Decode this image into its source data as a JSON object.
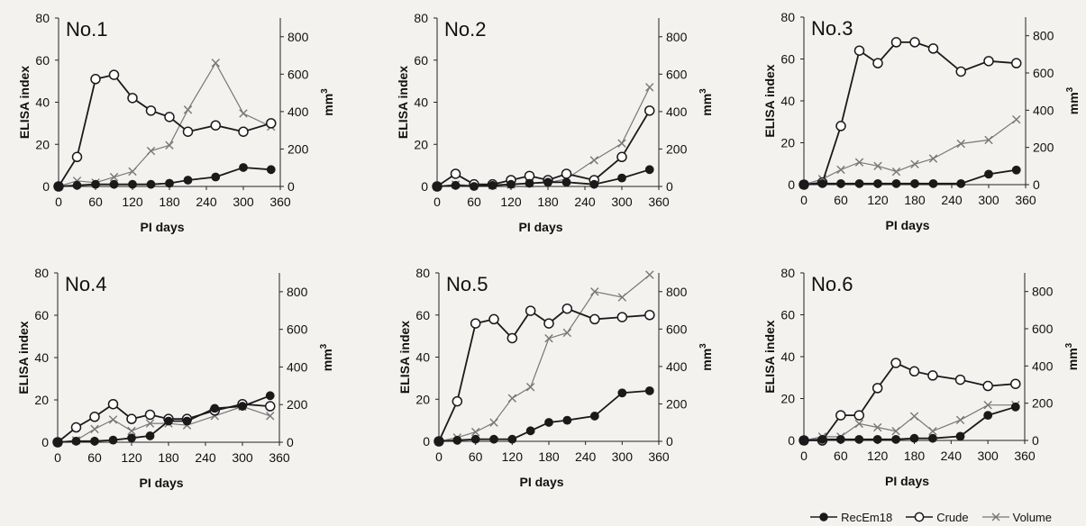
{
  "legend": {
    "recem18": "RecEm18",
    "crude": "Crude",
    "volume": "Volume"
  },
  "colors": {
    "recem18": "#1a1a1a",
    "crude": "#1a1a1a",
    "volume": "#777777",
    "axis": "#222222"
  },
  "chart_data": [
    {
      "type": "line",
      "title": "No.1",
      "xlabel": "PI days",
      "ylabel": "ELISA index",
      "y2label": "mm3",
      "xlim": [
        0,
        360
      ],
      "ylim": [
        0,
        80
      ],
      "y2lim": [
        0,
        900
      ],
      "xticks": [
        0,
        60,
        120,
        180,
        240,
        300,
        360
      ],
      "yticks": [
        0,
        20,
        40,
        60,
        80
      ],
      "y2ticks": [
        0,
        200,
        400,
        600,
        800
      ],
      "series": [
        {
          "name": "RecEm18",
          "axis": "left",
          "marker": "filled-circle",
          "x": [
            0,
            30,
            60,
            90,
            120,
            150,
            180,
            210,
            255,
            300,
            345
          ],
          "y": [
            0,
            0.5,
            1,
            1,
            1,
            1,
            1.5,
            3,
            4.5,
            9,
            8
          ]
        },
        {
          "name": "Crude",
          "axis": "left",
          "marker": "open-circle",
          "x": [
            0,
            30,
            60,
            90,
            120,
            150,
            180,
            210,
            255,
            300,
            345
          ],
          "y": [
            0,
            14,
            51,
            53,
            42,
            36,
            33,
            26,
            29,
            26,
            30
          ]
        },
        {
          "name": "Volume",
          "axis": "right",
          "marker": "cross",
          "x": [
            0,
            30,
            60,
            90,
            120,
            150,
            180,
            210,
            255,
            300,
            345
          ],
          "y": [
            0,
            30,
            20,
            50,
            80,
            190,
            220,
            410,
            660,
            390,
            320
          ]
        }
      ]
    },
    {
      "type": "line",
      "title": "No.2",
      "xlabel": "PI days",
      "ylabel": "ELISA index",
      "y2label": "mm3",
      "xlim": [
        0,
        360
      ],
      "ylim": [
        0,
        80
      ],
      "y2lim": [
        0,
        900
      ],
      "xticks": [
        0,
        60,
        120,
        180,
        240,
        300,
        360
      ],
      "yticks": [
        0,
        20,
        40,
        60,
        80
      ],
      "y2ticks": [
        0,
        200,
        400,
        600,
        800
      ],
      "series": [
        {
          "name": "RecEm18",
          "axis": "left",
          "marker": "filled-circle",
          "x": [
            0,
            30,
            60,
            90,
            120,
            150,
            180,
            210,
            255,
            300,
            345
          ],
          "y": [
            0,
            0.5,
            0,
            0.5,
            1,
            1.5,
            2,
            2,
            1,
            4,
            8
          ]
        },
        {
          "name": "Crude",
          "axis": "left",
          "marker": "open-circle",
          "x": [
            0,
            30,
            60,
            90,
            120,
            150,
            180,
            210,
            255,
            300,
            345
          ],
          "y": [
            0,
            6,
            1,
            1,
            3,
            5,
            3,
            6,
            3,
            14,
            36
          ]
        },
        {
          "name": "Volume",
          "axis": "right",
          "marker": "cross",
          "x": [
            0,
            30,
            60,
            90,
            120,
            150,
            180,
            210,
            255,
            300,
            345
          ],
          "y": [
            0,
            10,
            5,
            5,
            10,
            15,
            20,
            40,
            140,
            230,
            530
          ]
        }
      ]
    },
    {
      "type": "line",
      "title": "No.3",
      "xlabel": "PI days",
      "ylabel": "ELISA index",
      "y2label": "mm3",
      "xlim": [
        0,
        360
      ],
      "ylim": [
        0,
        80
      ],
      "y2lim": [
        0,
        900
      ],
      "xticks": [
        0,
        60,
        120,
        180,
        240,
        300,
        360
      ],
      "yticks": [
        0,
        20,
        40,
        60,
        80
      ],
      "y2ticks": [
        0,
        200,
        400,
        600,
        800
      ],
      "series": [
        {
          "name": "RecEm18",
          "axis": "left",
          "marker": "filled-circle",
          "x": [
            0,
            30,
            60,
            90,
            120,
            150,
            180,
            210,
            255,
            300,
            345
          ],
          "y": [
            0,
            0.5,
            0.5,
            0.5,
            0.5,
            0.5,
            0.5,
            0.5,
            0.5,
            5,
            7
          ]
        },
        {
          "name": "Crude",
          "axis": "left",
          "marker": "open-circle",
          "x": [
            0,
            30,
            60,
            90,
            120,
            150,
            180,
            210,
            255,
            300,
            345
          ],
          "y": [
            0,
            1,
            28,
            64,
            58,
            68,
            68,
            65,
            54,
            59,
            58
          ]
        },
        {
          "name": "Volume",
          "axis": "right",
          "marker": "cross",
          "x": [
            0,
            30,
            60,
            90,
            120,
            150,
            180,
            210,
            255,
            300,
            345
          ],
          "y": [
            0,
            30,
            80,
            120,
            100,
            70,
            110,
            140,
            220,
            240,
            350
          ]
        }
      ]
    },
    {
      "type": "line",
      "title": "No.4",
      "xlabel": "PI days",
      "ylabel": "ELISA index",
      "y2label": "mm3",
      "xlim": [
        0,
        360
      ],
      "ylim": [
        0,
        80
      ],
      "y2lim": [
        0,
        900
      ],
      "xticks": [
        0,
        60,
        120,
        180,
        240,
        300,
        360
      ],
      "yticks": [
        0,
        20,
        40,
        60,
        80
      ],
      "y2ticks": [
        0,
        200,
        400,
        600,
        800
      ],
      "series": [
        {
          "name": "RecEm18",
          "axis": "left",
          "marker": "filled-circle",
          "x": [
            0,
            30,
            60,
            90,
            120,
            150,
            180,
            210,
            255,
            300,
            345
          ],
          "y": [
            0,
            0.5,
            0.5,
            1,
            2,
            3,
            10,
            10,
            16,
            17,
            22
          ]
        },
        {
          "name": "Crude",
          "axis": "left",
          "marker": "open-circle",
          "x": [
            0,
            30,
            60,
            90,
            120,
            150,
            180,
            210,
            255,
            300,
            345
          ],
          "y": [
            0,
            7,
            12,
            18,
            11,
            13,
            11,
            11,
            15,
            18,
            17
          ]
        },
        {
          "name": "Volume",
          "axis": "right",
          "marker": "cross",
          "x": [
            0,
            30,
            60,
            90,
            120,
            150,
            180,
            210,
            255,
            300,
            345
          ],
          "y": [
            0,
            10,
            70,
            120,
            60,
            100,
            100,
            90,
            140,
            190,
            140
          ]
        }
      ]
    },
    {
      "type": "line",
      "title": "No.5",
      "xlabel": "PI days",
      "ylabel": "ELISA index",
      "y2label": "mm3",
      "xlim": [
        0,
        360
      ],
      "ylim": [
        0,
        80
      ],
      "y2lim": [
        0,
        900
      ],
      "xticks": [
        0,
        60,
        120,
        180,
        240,
        300,
        360
      ],
      "yticks": [
        0,
        20,
        40,
        60,
        80
      ],
      "y2ticks": [
        0,
        200,
        400,
        600,
        800
      ],
      "series": [
        {
          "name": "RecEm18",
          "axis": "left",
          "marker": "filled-circle",
          "x": [
            0,
            30,
            60,
            90,
            120,
            150,
            180,
            210,
            255,
            300,
            345
          ],
          "y": [
            0,
            0.5,
            1,
            1,
            1,
            5,
            9,
            10,
            12,
            23,
            24
          ]
        },
        {
          "name": "Crude",
          "axis": "left",
          "marker": "open-circle",
          "x": [
            0,
            30,
            60,
            90,
            120,
            150,
            180,
            210,
            255,
            300,
            345
          ],
          "y": [
            0,
            19,
            56,
            58,
            49,
            62,
            56,
            63,
            58,
            59,
            60
          ]
        },
        {
          "name": "Volume",
          "axis": "right",
          "marker": "cross",
          "x": [
            0,
            30,
            60,
            90,
            120,
            150,
            180,
            210,
            255,
            300,
            345
          ],
          "y": [
            0,
            20,
            50,
            100,
            230,
            290,
            550,
            580,
            800,
            770,
            890
          ]
        }
      ]
    },
    {
      "type": "line",
      "title": "No.6",
      "xlabel": "PI days",
      "ylabel": "ELISA index",
      "y2label": "mm3",
      "xlim": [
        0,
        360
      ],
      "ylim": [
        0,
        80
      ],
      "y2lim": [
        0,
        900
      ],
      "xticks": [
        0,
        60,
        120,
        180,
        240,
        300,
        360
      ],
      "yticks": [
        0,
        20,
        40,
        60,
        80
      ],
      "y2ticks": [
        0,
        200,
        400,
        600,
        800
      ],
      "series": [
        {
          "name": "RecEm18",
          "axis": "left",
          "marker": "filled-circle",
          "x": [
            0,
            30,
            60,
            90,
            120,
            150,
            180,
            210,
            255,
            300,
            345
          ],
          "y": [
            0,
            0.5,
            0.5,
            0.5,
            0.5,
            0.5,
            1,
            1,
            2,
            12,
            16
          ]
        },
        {
          "name": "Crude",
          "axis": "left",
          "marker": "open-circle",
          "x": [
            0,
            30,
            60,
            90,
            120,
            150,
            180,
            210,
            255,
            300,
            345
          ],
          "y": [
            0,
            0,
            12,
            12,
            25,
            37,
            33,
            31,
            29,
            26,
            27
          ]
        },
        {
          "name": "Volume",
          "axis": "right",
          "marker": "cross",
          "x": [
            0,
            30,
            60,
            90,
            120,
            150,
            180,
            210,
            255,
            300,
            345
          ],
          "y": [
            0,
            20,
            20,
            90,
            70,
            50,
            130,
            50,
            110,
            190,
            190
          ]
        }
      ]
    }
  ]
}
